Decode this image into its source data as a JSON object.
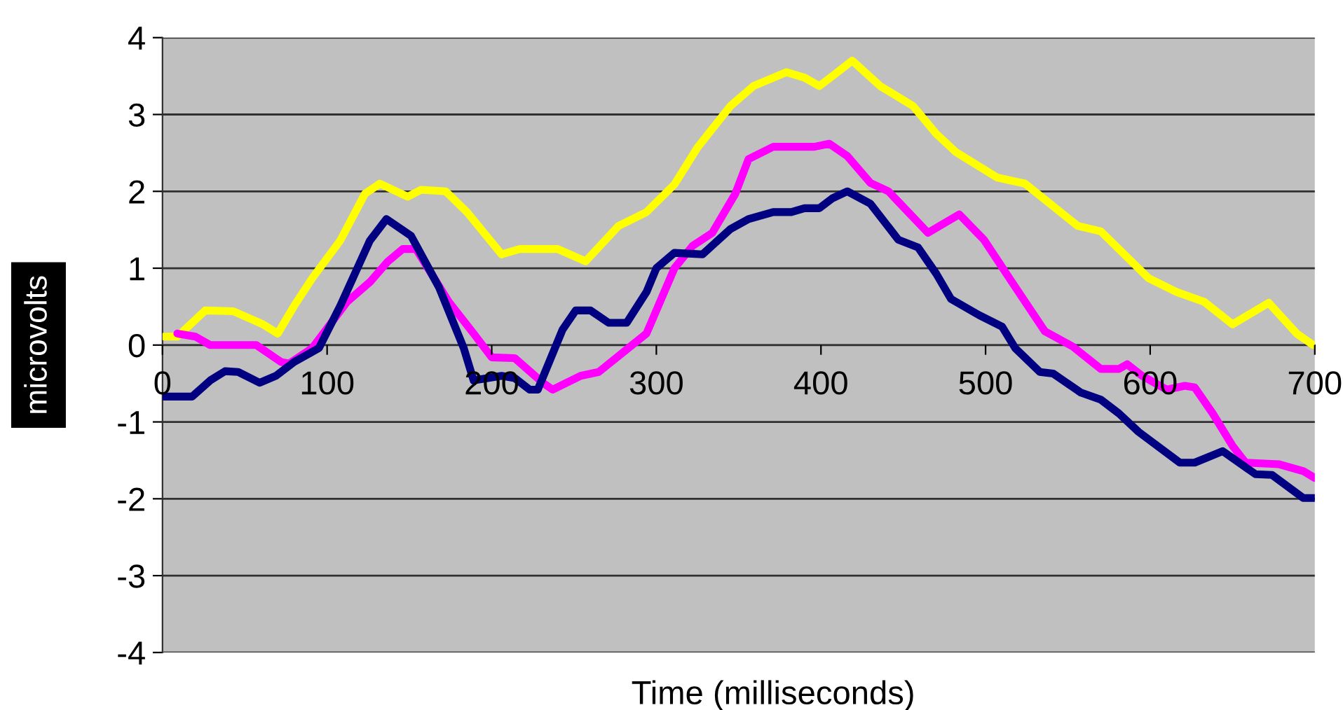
{
  "chart_data": {
    "type": "line",
    "xlabel": "Time (milliseconds)",
    "ylabel": "microvolts",
    "xlim": [
      0,
      700
    ],
    "xticks": [
      0,
      100,
      200,
      300,
      400,
      500,
      600,
      700
    ],
    "ylim": [
      -4,
      4
    ],
    "yticks": [
      -4,
      -3,
      -2,
      -1,
      0,
      1,
      2,
      3,
      4
    ],
    "grid": "y",
    "marker": "none",
    "line_style": "solid",
    "series": [
      {
        "color": "#ffff00",
        "x": [
          1,
          9,
          26,
          43,
          61,
          70,
          80,
          91,
          108,
          123,
          132,
          149,
          157,
          172,
          185,
          206,
          217,
          240,
          257,
          277,
          294,
          311,
          325,
          345,
          359,
          379,
          390,
          399,
          407,
          419,
          436,
          456,
          470,
          482,
          507,
          524,
          556,
          570,
          599,
          616,
          633,
          650,
          672,
          689,
          699
        ],
        "values": [
          0.11,
          0.11,
          0.45,
          0.44,
          0.27,
          0.15,
          0.51,
          0.87,
          1.36,
          1.97,
          2.1,
          1.93,
          2.02,
          2.0,
          1.73,
          1.18,
          1.25,
          1.25,
          1.09,
          1.55,
          1.73,
          2.09,
          2.57,
          3.11,
          3.37,
          3.55,
          3.48,
          3.37,
          3.5,
          3.7,
          3.37,
          3.11,
          2.75,
          2.51,
          2.18,
          2.1,
          1.55,
          1.48,
          0.87,
          0.69,
          0.56,
          0.27,
          0.55,
          0.15,
          0.0
        ]
      },
      {
        "color": "#ff00ff",
        "x": [
          9,
          20,
          29,
          57,
          72,
          77,
          91,
          112,
          126,
          137,
          146,
          154,
          174,
          189,
          200,
          214,
          231,
          237,
          254,
          265,
          283,
          294,
          311,
          322,
          334,
          348,
          356,
          371,
          396,
          405,
          416,
          430,
          441,
          453,
          465,
          476,
          484,
          499,
          516,
          536,
          553,
          570,
          581,
          586,
          595,
          610,
          621,
          627,
          638,
          650,
          658,
          678,
          693,
          700
        ],
        "values": [
          0.15,
          0.11,
          0.0,
          0.0,
          -0.22,
          -0.24,
          -0.04,
          0.56,
          0.82,
          1.09,
          1.25,
          1.25,
          0.56,
          0.15,
          -0.16,
          -0.17,
          -0.49,
          -0.58,
          -0.4,
          -0.35,
          -0.04,
          0.15,
          1.0,
          1.29,
          1.46,
          1.97,
          2.42,
          2.58,
          2.58,
          2.62,
          2.46,
          2.11,
          2.0,
          1.73,
          1.46,
          1.6,
          1.7,
          1.37,
          0.82,
          0.18,
          -0.02,
          -0.31,
          -0.31,
          -0.25,
          -0.4,
          -0.58,
          -0.53,
          -0.55,
          -0.89,
          -1.31,
          -1.53,
          -1.55,
          -1.64,
          -1.73
        ]
      },
      {
        "color": "#000080",
        "x": [
          1,
          18,
          29,
          38,
          46,
          59,
          69,
          80,
          95,
          108,
          126,
          136,
          151,
          168,
          183,
          189,
          206,
          214,
          223,
          228,
          243,
          251,
          260,
          271,
          282,
          294,
          300,
          311,
          328,
          345,
          356,
          371,
          382,
          390,
          399,
          407,
          416,
          430,
          447,
          459,
          470,
          479,
          496,
          510,
          518,
          533,
          541,
          558,
          570,
          581,
          593,
          618,
          627,
          644,
          664,
          674,
          693,
          700
        ],
        "values": [
          -0.67,
          -0.67,
          -0.46,
          -0.34,
          -0.35,
          -0.49,
          -0.4,
          -0.22,
          -0.04,
          0.51,
          1.36,
          1.64,
          1.42,
          0.75,
          -0.04,
          -0.46,
          -0.4,
          -0.43,
          -0.58,
          -0.58,
          0.2,
          0.45,
          0.45,
          0.29,
          0.29,
          0.69,
          1.0,
          1.2,
          1.18,
          1.51,
          1.64,
          1.73,
          1.73,
          1.78,
          1.78,
          1.91,
          2.0,
          1.84,
          1.37,
          1.27,
          0.93,
          0.6,
          0.39,
          0.24,
          -0.04,
          -0.35,
          -0.37,
          -0.62,
          -0.71,
          -0.89,
          -1.13,
          -1.53,
          -1.53,
          -1.38,
          -1.68,
          -1.69,
          -1.99,
          -1.99
        ]
      }
    ]
  }
}
